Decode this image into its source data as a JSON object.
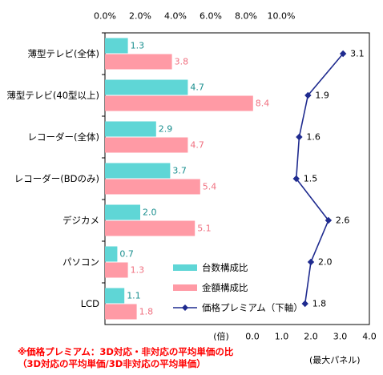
{
  "chart_data": {
    "type": "bar",
    "categories": [
      "薄型テレビ(全体)",
      "薄型テレビ(40型以上)",
      "レコーダー(全体)",
      "レコーダー(BDのみ)",
      "デジカメ",
      "パソコン",
      "LCD"
    ],
    "series": [
      {
        "name": "台数構成比",
        "values": [
          1.3,
          4.7,
          2.9,
          3.7,
          2.0,
          0.7,
          1.1
        ],
        "color": "#5fd6d6",
        "label_color": "#1a8f8f",
        "axis": "top"
      },
      {
        "name": "金額構成比",
        "values": [
          3.8,
          8.4,
          4.7,
          5.4,
          5.1,
          1.3,
          1.8
        ],
        "color": "#ff9aa5",
        "label_color": "#f07080",
        "axis": "top"
      },
      {
        "name": "価格プレミアム（下軸）",
        "values": [
          3.1,
          1.9,
          1.6,
          1.5,
          2.6,
          2.0,
          1.8
        ],
        "color": "#1f2b8f",
        "type": "line",
        "axis": "bottom"
      }
    ],
    "top_axis": {
      "ticks": [
        "0.0%",
        "2.0%",
        "4.0%",
        "6.0%",
        "8.0%",
        "10.0%"
      ],
      "range": [
        0,
        10
      ]
    },
    "bottom_axis": {
      "unit_label": "(倍)",
      "ticks": [
        "0.0",
        "1.0",
        "2.0",
        "3.0",
        "4.0"
      ],
      "range": [
        0,
        4
      ]
    },
    "legend_position": "bottom-right",
    "grid": false
  },
  "notes": {
    "line1": "※価格プレミアム：3D対応・非対応の平均単価の比",
    "line2": "（3D対応の平均単価/3D非対応の平均単価）"
  },
  "corner_label": "(最大パネル)"
}
